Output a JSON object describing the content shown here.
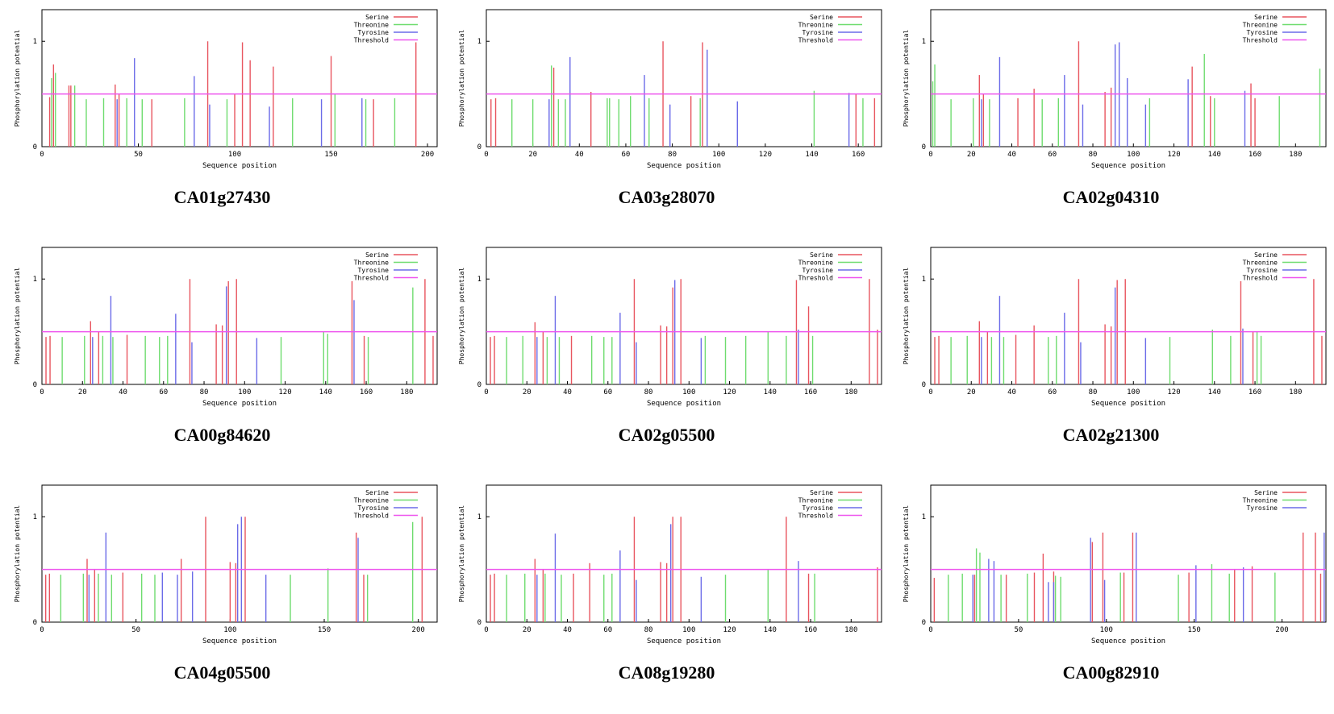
{
  "figure": {
    "legend_colors": {
      "Serine": "#e8555f",
      "Threonine": "#6fdc6f",
      "Tyrosine": "#6b6be8",
      "Threshold": "#ee55ee"
    },
    "threshold_value": 0.5
  },
  "chart_data": [
    {
      "type": "bar",
      "caption": "CA01g27430",
      "xlabel": "Sequence position",
      "ylabel": "Phosphorylation potential",
      "xlim": [
        0,
        205
      ],
      "ylim": [
        0,
        1.3
      ],
      "xticks": [
        0,
        50,
        100,
        150,
        200
      ],
      "yticks": [
        0,
        1
      ],
      "legend": [
        "Serine",
        "Threonine",
        "Tyrosine",
        "Threshold"
      ],
      "threshold": 0.5,
      "series": [
        {
          "name": "Serine",
          "x": [
            4,
            6,
            14,
            15,
            38,
            40,
            57,
            86,
            100,
            104,
            108,
            120,
            150,
            172,
            194
          ],
          "y": [
            0.47,
            0.78,
            0.58,
            0.58,
            0.59,
            0.5,
            0.45,
            1.0,
            0.5,
            0.99,
            0.82,
            0.76,
            0.86,
            0.45,
            0.99
          ]
        },
        {
          "name": "Threonine",
          "x": [
            5,
            7,
            17,
            23,
            32,
            44,
            52,
            74,
            96,
            130,
            152,
            168,
            183
          ],
          "y": [
            0.65,
            0.7,
            0.58,
            0.45,
            0.46,
            0.46,
            0.45,
            0.46,
            0.45,
            0.46,
            0.5,
            0.45,
            0.46
          ]
        },
        {
          "name": "Tyrosine",
          "x": [
            39,
            48,
            79,
            87,
            118,
            145,
            166
          ],
          "y": [
            0.45,
            0.84,
            0.67,
            0.4,
            0.38,
            0.45,
            0.46
          ]
        }
      ]
    },
    {
      "type": "bar",
      "caption": "CA03g28070",
      "xlabel": "Sequence position",
      "ylabel": "Phosphorylation potential",
      "xlim": [
        0,
        170
      ],
      "ylim": [
        0,
        1.3
      ],
      "xticks": [
        0,
        20,
        40,
        60,
        80,
        100,
        120,
        140,
        160
      ],
      "yticks": [
        0,
        1
      ],
      "legend": [
        "Serine",
        "Threonine",
        "Tyrosine",
        "Threshold"
      ],
      "threshold": 0.5,
      "series": [
        {
          "name": "Serine",
          "x": [
            2,
            4,
            29,
            45,
            76,
            88,
            93,
            159,
            167
          ],
          "y": [
            0.45,
            0.46,
            0.75,
            0.52,
            1.0,
            0.48,
            0.99,
            0.5,
            0.46
          ]
        },
        {
          "name": "Threonine",
          "x": [
            11,
            20,
            28,
            31,
            34,
            52,
            53,
            57,
            62,
            70,
            92,
            141,
            162
          ],
          "y": [
            0.45,
            0.45,
            0.77,
            0.45,
            0.45,
            0.46,
            0.46,
            0.45,
            0.48,
            0.46,
            0.46,
            0.53,
            0.46
          ]
        },
        {
          "name": "Tyrosine",
          "x": [
            27,
            36,
            68,
            79,
            95,
            108,
            156
          ],
          "y": [
            0.45,
            0.85,
            0.68,
            0.4,
            0.92,
            0.43,
            0.51
          ]
        }
      ]
    },
    {
      "type": "bar",
      "caption": "CA02g04310",
      "xlabel": "Sequence position",
      "ylabel": "Phosphorylation potential",
      "xlim": [
        0,
        195
      ],
      "ylim": [
        0,
        1.3
      ],
      "xticks": [
        0,
        20,
        40,
        60,
        80,
        100,
        120,
        140,
        160,
        180
      ],
      "yticks": [
        0,
        1
      ],
      "legend": [
        "Serine",
        "Threonine",
        "Tyrosine",
        "Threshold"
      ],
      "threshold": 0.5,
      "series": [
        {
          "name": "Serine",
          "x": [
            24,
            26,
            43,
            51,
            73,
            86,
            89,
            129,
            138,
            158,
            160
          ],
          "y": [
            0.68,
            0.5,
            0.46,
            0.55,
            1.0,
            0.52,
            0.56,
            0.76,
            0.48,
            0.6,
            0.46
          ]
        },
        {
          "name": "Threonine",
          "x": [
            1,
            2,
            10,
            21,
            29,
            55,
            63,
            108,
            135,
            140,
            172,
            192
          ],
          "y": [
            0.62,
            0.78,
            0.45,
            0.46,
            0.45,
            0.45,
            0.46,
            0.46,
            0.88,
            0.46,
            0.48,
            0.74
          ]
        },
        {
          "name": "Tyrosine",
          "x": [
            25,
            34,
            66,
            75,
            91,
            93,
            97,
            106,
            127,
            155
          ],
          "y": [
            0.45,
            0.85,
            0.68,
            0.4,
            0.97,
            0.99,
            0.65,
            0.4,
            0.64,
            0.53
          ]
        }
      ]
    },
    {
      "type": "bar",
      "caption": "CA00g84620",
      "xlabel": "Sequence position",
      "ylabel": "Phosphorylation potential",
      "xlim": [
        0,
        195
      ],
      "ylim": [
        0,
        1.3
      ],
      "xticks": [
        0,
        20,
        40,
        60,
        80,
        100,
        120,
        140,
        160,
        180
      ],
      "yticks": [
        0,
        1
      ],
      "legend": [
        "Serine",
        "Threonine",
        "Tyrosine",
        "Threshold"
      ],
      "threshold": 0.5,
      "series": [
        {
          "name": "Serine",
          "x": [
            2,
            4,
            24,
            28,
            42,
            73,
            86,
            89,
            92,
            96,
            153,
            159,
            189,
            193
          ],
          "y": [
            0.45,
            0.46,
            0.6,
            0.5,
            0.47,
            1.0,
            0.57,
            0.56,
            0.98,
            1.0,
            0.98,
            0.46,
            1.0,
            0.46
          ]
        },
        {
          "name": "Threonine",
          "x": [
            10,
            21,
            30,
            35,
            51,
            58,
            62,
            118,
            139,
            141,
            161,
            183
          ],
          "y": [
            0.45,
            0.46,
            0.46,
            0.45,
            0.46,
            0.45,
            0.46,
            0.45,
            0.5,
            0.48,
            0.45,
            0.92
          ]
        },
        {
          "name": "Tyrosine",
          "x": [
            25,
            34,
            66,
            74,
            91,
            106,
            154
          ],
          "y": [
            0.45,
            0.84,
            0.67,
            0.4,
            0.93,
            0.44,
            0.8
          ]
        }
      ]
    },
    {
      "type": "bar",
      "caption": "CA02g05500",
      "xlabel": "Sequence position",
      "ylabel": "Phosphorylation potential",
      "xlim": [
        0,
        195
      ],
      "ylim": [
        0,
        1.3
      ],
      "xticks": [
        0,
        20,
        40,
        60,
        80,
        100,
        120,
        140,
        160,
        180
      ],
      "yticks": [
        0,
        1
      ],
      "legend": [
        "Serine",
        "Threonine",
        "Tyrosine",
        "Threshold"
      ],
      "threshold": 0.5,
      "series": [
        {
          "name": "Serine",
          "x": [
            2,
            4,
            24,
            28,
            42,
            73,
            86,
            89,
            92,
            96,
            153,
            159,
            189,
            193
          ],
          "y": [
            0.45,
            0.46,
            0.59,
            0.5,
            0.46,
            1.0,
            0.56,
            0.55,
            0.92,
            1.0,
            0.99,
            0.74,
            1.0,
            0.52
          ]
        },
        {
          "name": "Threonine",
          "x": [
            10,
            18,
            30,
            36,
            52,
            58,
            62,
            108,
            118,
            128,
            139,
            148,
            161
          ],
          "y": [
            0.45,
            0.46,
            0.45,
            0.45,
            0.46,
            0.45,
            0.45,
            0.46,
            0.45,
            0.46,
            0.5,
            0.46,
            0.46
          ]
        },
        {
          "name": "Tyrosine",
          "x": [
            25,
            34,
            66,
            74,
            93,
            106,
            154
          ],
          "y": [
            0.45,
            0.84,
            0.68,
            0.4,
            0.99,
            0.44,
            0.52
          ]
        }
      ]
    },
    {
      "type": "bar",
      "caption": "CA02g21300",
      "xlabel": "Sequence position",
      "ylabel": "Phosphorylation potential",
      "xlim": [
        0,
        195
      ],
      "ylim": [
        0,
        1.3
      ],
      "xticks": [
        0,
        20,
        40,
        60,
        80,
        100,
        120,
        140,
        160,
        180
      ],
      "yticks": [
        0,
        1
      ],
      "legend": [
        "Serine",
        "Threonine",
        "Tyrosine",
        "Threshold"
      ],
      "threshold": 0.5,
      "series": [
        {
          "name": "Serine",
          "x": [
            2,
            4,
            24,
            28,
            42,
            51,
            73,
            86,
            89,
            92,
            96,
            153,
            159,
            189,
            193
          ],
          "y": [
            0.45,
            0.46,
            0.6,
            0.5,
            0.47,
            0.56,
            1.0,
            0.57,
            0.55,
            0.99,
            1.0,
            0.98,
            0.5,
            1.0,
            0.46
          ]
        },
        {
          "name": "Threonine",
          "x": [
            10,
            18,
            30,
            36,
            58,
            62,
            118,
            139,
            148,
            161,
            163
          ],
          "y": [
            0.45,
            0.46,
            0.45,
            0.45,
            0.45,
            0.46,
            0.45,
            0.52,
            0.46,
            0.5,
            0.46
          ]
        },
        {
          "name": "Tyrosine",
          "x": [
            25,
            34,
            66,
            74,
            91,
            106,
            154
          ],
          "y": [
            0.45,
            0.84,
            0.68,
            0.4,
            0.92,
            0.44,
            0.53
          ]
        }
      ]
    },
    {
      "type": "bar",
      "caption": "CA04g05500",
      "xlabel": "Sequence position",
      "ylabel": "Phosphorylation potential",
      "xlim": [
        0,
        210
      ],
      "ylim": [
        0,
        1.3
      ],
      "xticks": [
        0,
        50,
        100,
        150,
        200
      ],
      "yticks": [
        0,
        1
      ],
      "legend": [
        "Serine",
        "Threonine",
        "Tyrosine",
        "Threshold"
      ],
      "threshold": 0.5,
      "series": [
        {
          "name": "Serine",
          "x": [
            2,
            4,
            24,
            28,
            43,
            74,
            87,
            100,
            103,
            108,
            167,
            171,
            202
          ],
          "y": [
            0.45,
            0.46,
            0.6,
            0.5,
            0.47,
            0.6,
            1.0,
            0.57,
            0.56,
            1.0,
            0.85,
            0.45,
            1.0
          ]
        },
        {
          "name": "Threonine",
          "x": [
            10,
            22,
            30,
            37,
            53,
            60,
            132,
            152,
            173,
            197
          ],
          "y": [
            0.45,
            0.46,
            0.46,
            0.45,
            0.46,
            0.45,
            0.45,
            0.51,
            0.45,
            0.95
          ]
        },
        {
          "name": "Tyrosine",
          "x": [
            25,
            34,
            64,
            72,
            80,
            104,
            106,
            119,
            168
          ],
          "y": [
            0.45,
            0.85,
            0.47,
            0.45,
            0.48,
            0.93,
            1.0,
            0.45,
            0.8
          ]
        }
      ]
    },
    {
      "type": "bar",
      "caption": "CA08g19280",
      "xlabel": "Sequence position",
      "ylabel": "Phosphorylation potential",
      "xlim": [
        0,
        195
      ],
      "ylim": [
        0,
        1.3
      ],
      "xticks": [
        0,
        20,
        40,
        60,
        80,
        100,
        120,
        140,
        160,
        180
      ],
      "yticks": [
        0,
        1
      ],
      "legend": [
        "Serine",
        "Threonine",
        "Tyrosine",
        "Threshold"
      ],
      "threshold": 0.5,
      "series": [
        {
          "name": "Serine",
          "x": [
            2,
            4,
            24,
            28,
            43,
            51,
            73,
            86,
            89,
            92,
            96,
            148,
            159,
            193
          ],
          "y": [
            0.45,
            0.46,
            0.6,
            0.5,
            0.46,
            0.56,
            1.0,
            0.57,
            0.56,
            1.0,
            1.0,
            1.0,
            0.46,
            0.52
          ]
        },
        {
          "name": "Threonine",
          "x": [
            10,
            19,
            29,
            37,
            58,
            62,
            118,
            139,
            162
          ],
          "y": [
            0.45,
            0.46,
            0.46,
            0.45,
            0.45,
            0.46,
            0.45,
            0.5,
            0.46
          ]
        },
        {
          "name": "Tyrosine",
          "x": [
            25,
            34,
            66,
            74,
            91,
            106,
            154
          ],
          "y": [
            0.45,
            0.84,
            0.68,
            0.4,
            0.93,
            0.43,
            0.58
          ]
        }
      ]
    },
    {
      "type": "bar",
      "caption": "CA00g82910",
      "xlabel": "Sequence position",
      "ylabel": "Phosphorylation potential",
      "xlim": [
        0,
        225
      ],
      "ylim": [
        0,
        1.3
      ],
      "xticks": [
        0,
        50,
        100,
        150,
        200
      ],
      "yticks": [
        0,
        1
      ],
      "legend": [
        "Serine",
        "Threonine",
        "Tyrosine"
      ],
      "threshold": 0.5,
      "series": [
        {
          "name": "Serine",
          "x": [
            2,
            25,
            43,
            59,
            64,
            70,
            92,
            98,
            110,
            115,
            147,
            173,
            183,
            212,
            219,
            222
          ],
          "y": [
            0.42,
            0.45,
            0.45,
            0.47,
            0.65,
            0.48,
            0.76,
            0.85,
            0.47,
            0.85,
            0.47,
            0.5,
            0.53,
            0.85,
            0.85,
            0.46
          ]
        },
        {
          "name": "Threonine",
          "x": [
            10,
            18,
            26,
            28,
            40,
            55,
            71,
            74,
            108,
            141,
            160,
            170,
            196
          ],
          "y": [
            0.45,
            0.46,
            0.7,
            0.66,
            0.45,
            0.46,
            0.44,
            0.43,
            0.47,
            0.45,
            0.55,
            0.46,
            0.47
          ]
        },
        {
          "name": "Tyrosine",
          "x": [
            24,
            33,
            36,
            67,
            70,
            91,
            99,
            117,
            151,
            178,
            224
          ],
          "y": [
            0.45,
            0.6,
            0.58,
            0.38,
            0.38,
            0.8,
            0.4,
            0.85,
            0.54,
            0.52,
            0.85
          ]
        }
      ]
    }
  ]
}
